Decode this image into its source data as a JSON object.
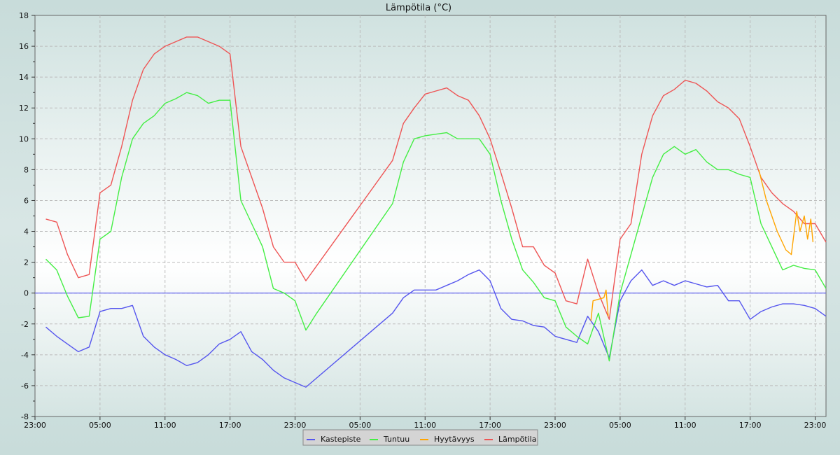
{
  "chart_data": {
    "type": "line",
    "title": "Lämpötila (°C)",
    "xlabel": "",
    "ylabel": "",
    "ylim": [
      -8,
      18
    ],
    "yticks": [
      -8,
      -6,
      -4,
      -2,
      0,
      2,
      4,
      6,
      8,
      10,
      12,
      14,
      16,
      18
    ],
    "x_unit": "hours since first 23:00",
    "xlim": [
      0,
      73
    ],
    "xticks": [
      {
        "h": 0,
        "label": "23:00"
      },
      {
        "h": 6,
        "label": "05:00"
      },
      {
        "h": 12,
        "label": "11:00"
      },
      {
        "h": 18,
        "label": "17:00"
      },
      {
        "h": 24,
        "label": "23:00"
      },
      {
        "h": 30,
        "label": "05:00"
      },
      {
        "h": 36,
        "label": "11:00"
      },
      {
        "h": 42,
        "label": "17:00"
      },
      {
        "h": 48,
        "label": "23:00"
      },
      {
        "h": 54,
        "label": "05:00"
      },
      {
        "h": 60,
        "label": "11:00"
      },
      {
        "h": 66,
        "label": "17:00"
      },
      {
        "h": 72,
        "label": "23:00"
      }
    ],
    "grid": true,
    "legend_position": "bottom-center",
    "series": [
      {
        "name": "Kastepiste",
        "color": "#5555ee",
        "points": [
          [
            1,
            -2.2
          ],
          [
            2,
            -2.8
          ],
          [
            3,
            -3.3
          ],
          [
            4,
            -3.8
          ],
          [
            5,
            -3.5
          ],
          [
            6,
            -1.2
          ],
          [
            7,
            -1
          ],
          [
            8,
            -1
          ],
          [
            9,
            -0.8
          ],
          [
            10,
            -2.8
          ],
          [
            11,
            -3.5
          ],
          [
            12,
            -4
          ],
          [
            13,
            -4.3
          ],
          [
            14,
            -4.7
          ],
          [
            15,
            -4.5
          ],
          [
            16,
            -4
          ],
          [
            17,
            -3.3
          ],
          [
            18,
            -3
          ],
          [
            19,
            -2.5
          ],
          [
            20,
            -3.8
          ],
          [
            21,
            -4.3
          ],
          [
            22,
            -5
          ],
          [
            23,
            -5.5
          ],
          [
            24,
            -5.8
          ],
          [
            25,
            -6.1
          ],
          [
            33,
            -1.3
          ],
          [
            34,
            -0.3
          ],
          [
            35,
            0.2
          ],
          [
            36,
            0.2
          ],
          [
            37,
            0.2
          ],
          [
            38,
            0.5
          ],
          [
            39,
            0.8
          ],
          [
            40,
            1.2
          ],
          [
            41,
            1.5
          ],
          [
            42,
            0.8
          ],
          [
            43,
            -1
          ],
          [
            44,
            -1.7
          ],
          [
            45,
            -1.8
          ],
          [
            46,
            -2.1
          ],
          [
            47,
            -2.2
          ],
          [
            48,
            -2.8
          ],
          [
            49,
            -3
          ],
          [
            50,
            -3.2
          ],
          [
            51,
            -1.5
          ],
          [
            52,
            -2.5
          ],
          [
            53,
            -4.2
          ],
          [
            54,
            -0.5
          ],
          [
            55,
            0.8
          ],
          [
            56,
            1.5
          ],
          [
            57,
            0.5
          ],
          [
            58,
            0.8
          ],
          [
            59,
            0.5
          ],
          [
            60,
            0.8
          ],
          [
            61,
            0.6
          ],
          [
            62,
            0.4
          ],
          [
            63,
            0.5
          ],
          [
            64,
            -0.5
          ],
          [
            65,
            -0.5
          ],
          [
            66,
            -1.7
          ],
          [
            67,
            -1.2
          ],
          [
            68,
            -0.9
          ],
          [
            69,
            -0.7
          ],
          [
            70,
            -0.7
          ],
          [
            71,
            -0.8
          ],
          [
            72,
            -1
          ],
          [
            73,
            -1.5
          ]
        ]
      },
      {
        "name": "Tuntuu",
        "color": "#44ee44",
        "points": [
          [
            1,
            2.2
          ],
          [
            2,
            1.5
          ],
          [
            3,
            -0.2
          ],
          [
            4,
            -1.6
          ],
          [
            5,
            -1.5
          ],
          [
            6,
            3.5
          ],
          [
            7,
            4
          ],
          [
            8,
            7.5
          ],
          [
            9,
            10
          ],
          [
            10,
            11
          ],
          [
            11,
            11.5
          ],
          [
            12,
            12.3
          ],
          [
            13,
            12.6
          ],
          [
            14,
            13
          ],
          [
            15,
            12.8
          ],
          [
            16,
            12.3
          ],
          [
            17,
            12.5
          ],
          [
            18,
            12.5
          ],
          [
            19,
            6
          ],
          [
            20,
            4.5
          ],
          [
            21,
            3
          ],
          [
            22,
            0.3
          ],
          [
            23,
            0
          ],
          [
            24,
            -0.5
          ],
          [
            25,
            -2.4
          ],
          [
            26,
            -1.3
          ],
          [
            33,
            5.8
          ],
          [
            34,
            8.5
          ],
          [
            35,
            10
          ],
          [
            36,
            10.2
          ],
          [
            37,
            10.3
          ],
          [
            38,
            10.4
          ],
          [
            39,
            10
          ],
          [
            40,
            10
          ],
          [
            41,
            10
          ],
          [
            42,
            9
          ],
          [
            43,
            6
          ],
          [
            44,
            3.5
          ],
          [
            45,
            1.5
          ],
          [
            46,
            0.7
          ],
          [
            47,
            -0.3
          ],
          [
            48,
            -0.5
          ],
          [
            49,
            -2.2
          ],
          [
            50,
            -2.8
          ],
          [
            51,
            -3.3
          ],
          [
            52,
            -1.3
          ],
          [
            53,
            -4.4
          ],
          [
            54,
            0
          ],
          [
            55,
            2.5
          ],
          [
            56,
            5
          ],
          [
            57,
            7.5
          ],
          [
            58,
            9
          ],
          [
            59,
            9.5
          ],
          [
            60,
            9
          ],
          [
            61,
            9.3
          ],
          [
            62,
            8.5
          ],
          [
            63,
            8
          ],
          [
            64,
            8
          ],
          [
            65,
            7.7
          ],
          [
            66,
            7.5
          ],
          [
            67,
            4.5
          ],
          [
            68,
            3
          ],
          [
            69,
            1.5
          ],
          [
            70,
            1.8
          ],
          [
            71,
            1.6
          ],
          [
            72,
            1.5
          ],
          [
            73,
            0.3
          ]
        ]
      },
      {
        "name": "Hyytävyys",
        "color": "#ffa500",
        "segments": [
          [
            [
              51.3,
              -1.8
            ],
            [
              51.5,
              -0.5
            ],
            [
              52.5,
              -0.3
            ],
            [
              52.7,
              0.2
            ],
            [
              52.9,
              -1.5
            ]
          ],
          [
            [
              66.8,
              8
            ],
            [
              67.5,
              6
            ],
            [
              68.5,
              4
            ],
            [
              69.3,
              2.8
            ],
            [
              69.8,
              2.5
            ],
            [
              70.3,
              5.3
            ],
            [
              70.6,
              4
            ],
            [
              71,
              5
            ],
            [
              71.3,
              3.5
            ],
            [
              71.6,
              4.8
            ],
            [
              71.8,
              3.3
            ]
          ]
        ]
      },
      {
        "name": "Lämpötila",
        "color": "#ee5555",
        "points": [
          [
            1,
            4.8
          ],
          [
            2,
            4.6
          ],
          [
            3,
            2.5
          ],
          [
            4,
            1
          ],
          [
            5,
            1.2
          ],
          [
            6,
            6.5
          ],
          [
            7,
            7
          ],
          [
            8,
            9.5
          ],
          [
            9,
            12.5
          ],
          [
            10,
            14.5
          ],
          [
            11,
            15.5
          ],
          [
            12,
            16
          ],
          [
            13,
            16.3
          ],
          [
            14,
            16.6
          ],
          [
            15,
            16.6
          ],
          [
            16,
            16.3
          ],
          [
            17,
            16
          ],
          [
            18,
            15.5
          ],
          [
            19,
            9.5
          ],
          [
            20,
            7.5
          ],
          [
            21,
            5.5
          ],
          [
            22,
            3
          ],
          [
            23,
            2
          ],
          [
            24,
            2
          ],
          [
            25,
            0.8
          ],
          [
            33,
            8.6
          ],
          [
            34,
            11
          ],
          [
            35,
            12
          ],
          [
            36,
            12.9
          ],
          [
            37,
            13.1
          ],
          [
            38,
            13.3
          ],
          [
            39,
            12.8
          ],
          [
            40,
            12.5
          ],
          [
            41,
            11.5
          ],
          [
            42,
            10
          ],
          [
            43,
            7.8
          ],
          [
            44,
            5.5
          ],
          [
            45,
            3
          ],
          [
            46,
            3
          ],
          [
            47,
            1.8
          ],
          [
            48,
            1.3
          ],
          [
            49,
            -0.5
          ],
          [
            50,
            -0.7
          ],
          [
            51,
            2.2
          ],
          [
            52,
            0
          ],
          [
            53,
            -1.7
          ],
          [
            54,
            3.5
          ],
          [
            55,
            4.5
          ],
          [
            56,
            9
          ],
          [
            57,
            11.5
          ],
          [
            58,
            12.8
          ],
          [
            59,
            13.2
          ],
          [
            60,
            13.8
          ],
          [
            61,
            13.6
          ],
          [
            62,
            13.1
          ],
          [
            63,
            12.4
          ],
          [
            64,
            12
          ],
          [
            65,
            11.3
          ],
          [
            66,
            9.5
          ],
          [
            67,
            7.5
          ],
          [
            68,
            6.5
          ],
          [
            69,
            5.8
          ],
          [
            70,
            5.3
          ],
          [
            71,
            4.5
          ],
          [
            72,
            4.5
          ],
          [
            73,
            3.3
          ]
        ]
      }
    ],
    "zero_line": {
      "value": 0,
      "color": "#5555ee"
    }
  }
}
